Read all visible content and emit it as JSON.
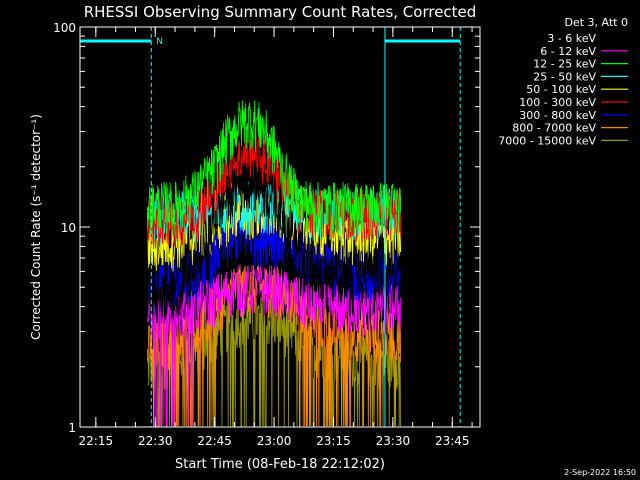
{
  "chart_data": {
    "type": "line",
    "title": "RHESSI Observing Summary Count Rates, Corrected",
    "xlabel": "Start Time (08-Feb-18 22:12:02)",
    "ylabel": "Corrected Count Rate (s⁻¹ detector⁻¹)",
    "ylog": true,
    "ylim": [
      1,
      100
    ],
    "xlim": [
      "22:11",
      "23:52"
    ],
    "xticks": [
      "22:15",
      "22:30",
      "22:45",
      "23:00",
      "23:15",
      "23:30",
      "23:45"
    ],
    "yticks": [
      "1",
      "10",
      "100"
    ],
    "legend_header": "Det 3, Att 0",
    "legend_position": "top-right",
    "series": [
      {
        "name": "3 - 6 keV",
        "color": "#000000",
        "times": [
          "22:28",
          "22:35",
          "22:40",
          "22:45",
          "22:48",
          "22:51",
          "22:54",
          "22:57",
          "23:00",
          "23:03",
          "23:06",
          "23:10",
          "23:20",
          "23:32"
        ],
        "values": [
          5,
          5,
          6,
          11,
          14,
          16,
          17,
          16,
          14,
          11,
          8,
          6,
          6,
          6
        ]
      },
      {
        "name": "6 - 12 keV",
        "color": "#ff00ff",
        "times": [
          "22:28",
          "22:40",
          "22:50",
          "23:00",
          "23:10",
          "23:20",
          "23:32"
        ],
        "values": [
          3.5,
          4,
          5,
          5,
          4,
          4,
          4
        ]
      },
      {
        "name": "12 - 25 keV",
        "color": "#00ff00",
        "times": [
          "22:28",
          "22:35",
          "22:40",
          "22:45",
          "22:48",
          "22:51",
          "22:54",
          "22:57",
          "23:00",
          "23:03",
          "23:06",
          "23:10",
          "23:20",
          "23:32"
        ],
        "values": [
          13,
          13,
          15,
          20,
          28,
          33,
          35,
          32,
          25,
          18,
          14,
          13,
          13,
          13
        ]
      },
      {
        "name": "25 - 50 keV",
        "color": "#00ffff",
        "times": [
          "22:28",
          "22:40",
          "22:50",
          "23:00",
          "23:10",
          "23:20",
          "23:32"
        ],
        "values": [
          11,
          12,
          13,
          13,
          12,
          12,
          12
        ]
      },
      {
        "name": "50 - 100 keV",
        "color": "#ffff00",
        "times": [
          "22:28",
          "22:40",
          "22:50",
          "23:00",
          "23:10",
          "23:20",
          "23:32"
        ],
        "values": [
          8,
          9,
          12,
          12,
          10,
          9,
          9
        ]
      },
      {
        "name": "100 - 300 keV",
        "color": "#ff0000",
        "times": [
          "22:28",
          "22:35",
          "22:40",
          "22:45",
          "22:48",
          "22:51",
          "22:54",
          "22:57",
          "23:00",
          "23:03",
          "23:06",
          "23:10",
          "23:20",
          "23:32"
        ],
        "values": [
          11,
          11,
          12,
          15,
          19,
          22,
          24,
          22,
          19,
          15,
          13,
          12,
          12,
          12
        ]
      },
      {
        "name": "300 - 800 keV",
        "color": "#0000ff",
        "times": [
          "22:28",
          "22:40",
          "22:50",
          "23:00",
          "23:10",
          "23:20",
          "23:32"
        ],
        "values": [
          5,
          6,
          9,
          9,
          7,
          6,
          6
        ]
      },
      {
        "name": "800 - 7000 keV",
        "color": "#ff8800",
        "times": [
          "22:28",
          "22:40",
          "22:50",
          "23:00",
          "23:10",
          "23:20",
          "23:32"
        ],
        "values": [
          2.5,
          3,
          5,
          5,
          3.5,
          3,
          3
        ]
      },
      {
        "name": "7000 - 15000 keV",
        "color": "#999900",
        "times": [
          "22:28",
          "22:40",
          "22:50",
          "23:00",
          "23:10",
          "23:20",
          "23:32"
        ],
        "values": [
          2,
          2.5,
          3.5,
          3.5,
          2.5,
          2.2,
          2.2
        ]
      }
    ],
    "annotations": {
      "flag_label": "N",
      "flag_color": "#00ffff",
      "solid_lines": [
        "22:11",
        "23:28"
      ],
      "dashed_lines": [
        "22:29",
        "23:47"
      ],
      "flag_bars": [
        [
          "22:11",
          "22:29"
        ],
        [
          "23:28",
          "23:47"
        ]
      ]
    }
  },
  "footer_timestamp": "2-Sep-2022 16:50"
}
